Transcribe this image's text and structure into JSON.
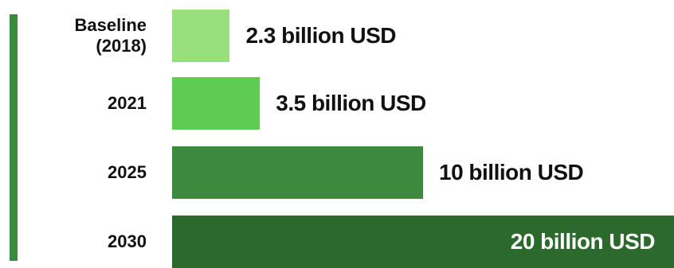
{
  "chart_data": {
    "type": "bar",
    "orientation": "horizontal",
    "categories": [
      "Baseline\n(2018)",
      "2021",
      "2025",
      "2030"
    ],
    "values": [
      2.3,
      3.5,
      10,
      20
    ],
    "unit": "billion USD",
    "data_labels": [
      "2.3 billion USD",
      "3.5 billion USD",
      "10 billion USD",
      "20 billion USD"
    ],
    "bar_colors": [
      "#98e07e",
      "#5fcb52",
      "#3d8a3f",
      "#2b6a2c"
    ],
    "label_colors": [
      "#111111",
      "#111111",
      "#111111",
      "#ffffff"
    ],
    "axis_color": "#3d8a3f",
    "grid": false,
    "title": "",
    "xlabel": "",
    "ylabel": ""
  }
}
